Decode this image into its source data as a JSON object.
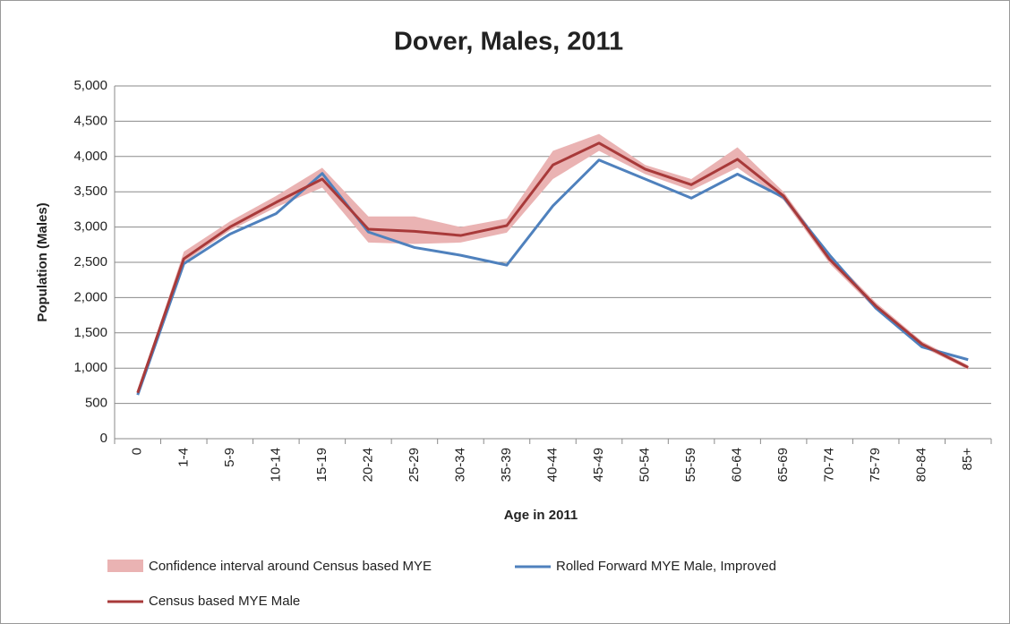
{
  "chart_data": {
    "type": "line",
    "title": "Dover, Males, 2011",
    "x_label": "Age in 2011",
    "y_label": "Population (Males)",
    "categories": [
      "0",
      "1-4",
      "5-9",
      "10-14",
      "15-19",
      "20-24",
      "25-29",
      "30-34",
      "35-39",
      "40-44",
      "45-49",
      "50-54",
      "55-59",
      "60-64",
      "65-69",
      "70-74",
      "75-79",
      "80-84",
      "85+"
    ],
    "ylim": [
      0,
      5000
    ],
    "yticks": [
      0,
      500,
      {
        "value": 1000,
        "label": "1,000"
      },
      {
        "value": 1500,
        "label": "1,500"
      },
      {
        "value": 2000,
        "label": "2,000"
      },
      {
        "value": 2500,
        "label": "2,500"
      },
      {
        "value": 3000,
        "label": "3,000"
      },
      {
        "value": 3500,
        "label": "3,500"
      },
      {
        "value": 4000,
        "label": "4,000"
      },
      {
        "value": 4500,
        "label": "4,500"
      },
      {
        "value": 5000,
        "label": "5,000"
      }
    ],
    "grid": true,
    "band": {
      "name": "Confidence interval around Census based MYE",
      "color": "#eab3b3",
      "lower": [
        620,
        2500,
        2950,
        3280,
        3560,
        2780,
        2760,
        2780,
        2920,
        3680,
        4080,
        3750,
        3520,
        3840,
        3380,
        2480,
        1830,
        1300,
        980
      ],
      "upper": [
        680,
        2650,
        3080,
        3440,
        3840,
        3150,
        3150,
        3000,
        3120,
        4080,
        4320,
        3880,
        3680,
        4130,
        3500,
        2600,
        1930,
        1380,
        1040
      ]
    },
    "series": [
      {
        "name": "Rolled Forward MYE Male, Improved",
        "color": "#4f81bd",
        "values": [
          620,
          2480,
          2900,
          3190,
          3760,
          2930,
          2710,
          2600,
          2460,
          3300,
          3950,
          3680,
          3410,
          3750,
          3420,
          2600,
          1850,
          1300,
          1120
        ]
      },
      {
        "name": "Census based MYE Male",
        "color": "#a83a3a",
        "values": [
          650,
          2550,
          3000,
          3350,
          3680,
          2970,
          2940,
          2880,
          3020,
          3880,
          4190,
          3820,
          3600,
          3960,
          3440,
          2540,
          1880,
          1340,
          1010
        ]
      }
    ]
  }
}
